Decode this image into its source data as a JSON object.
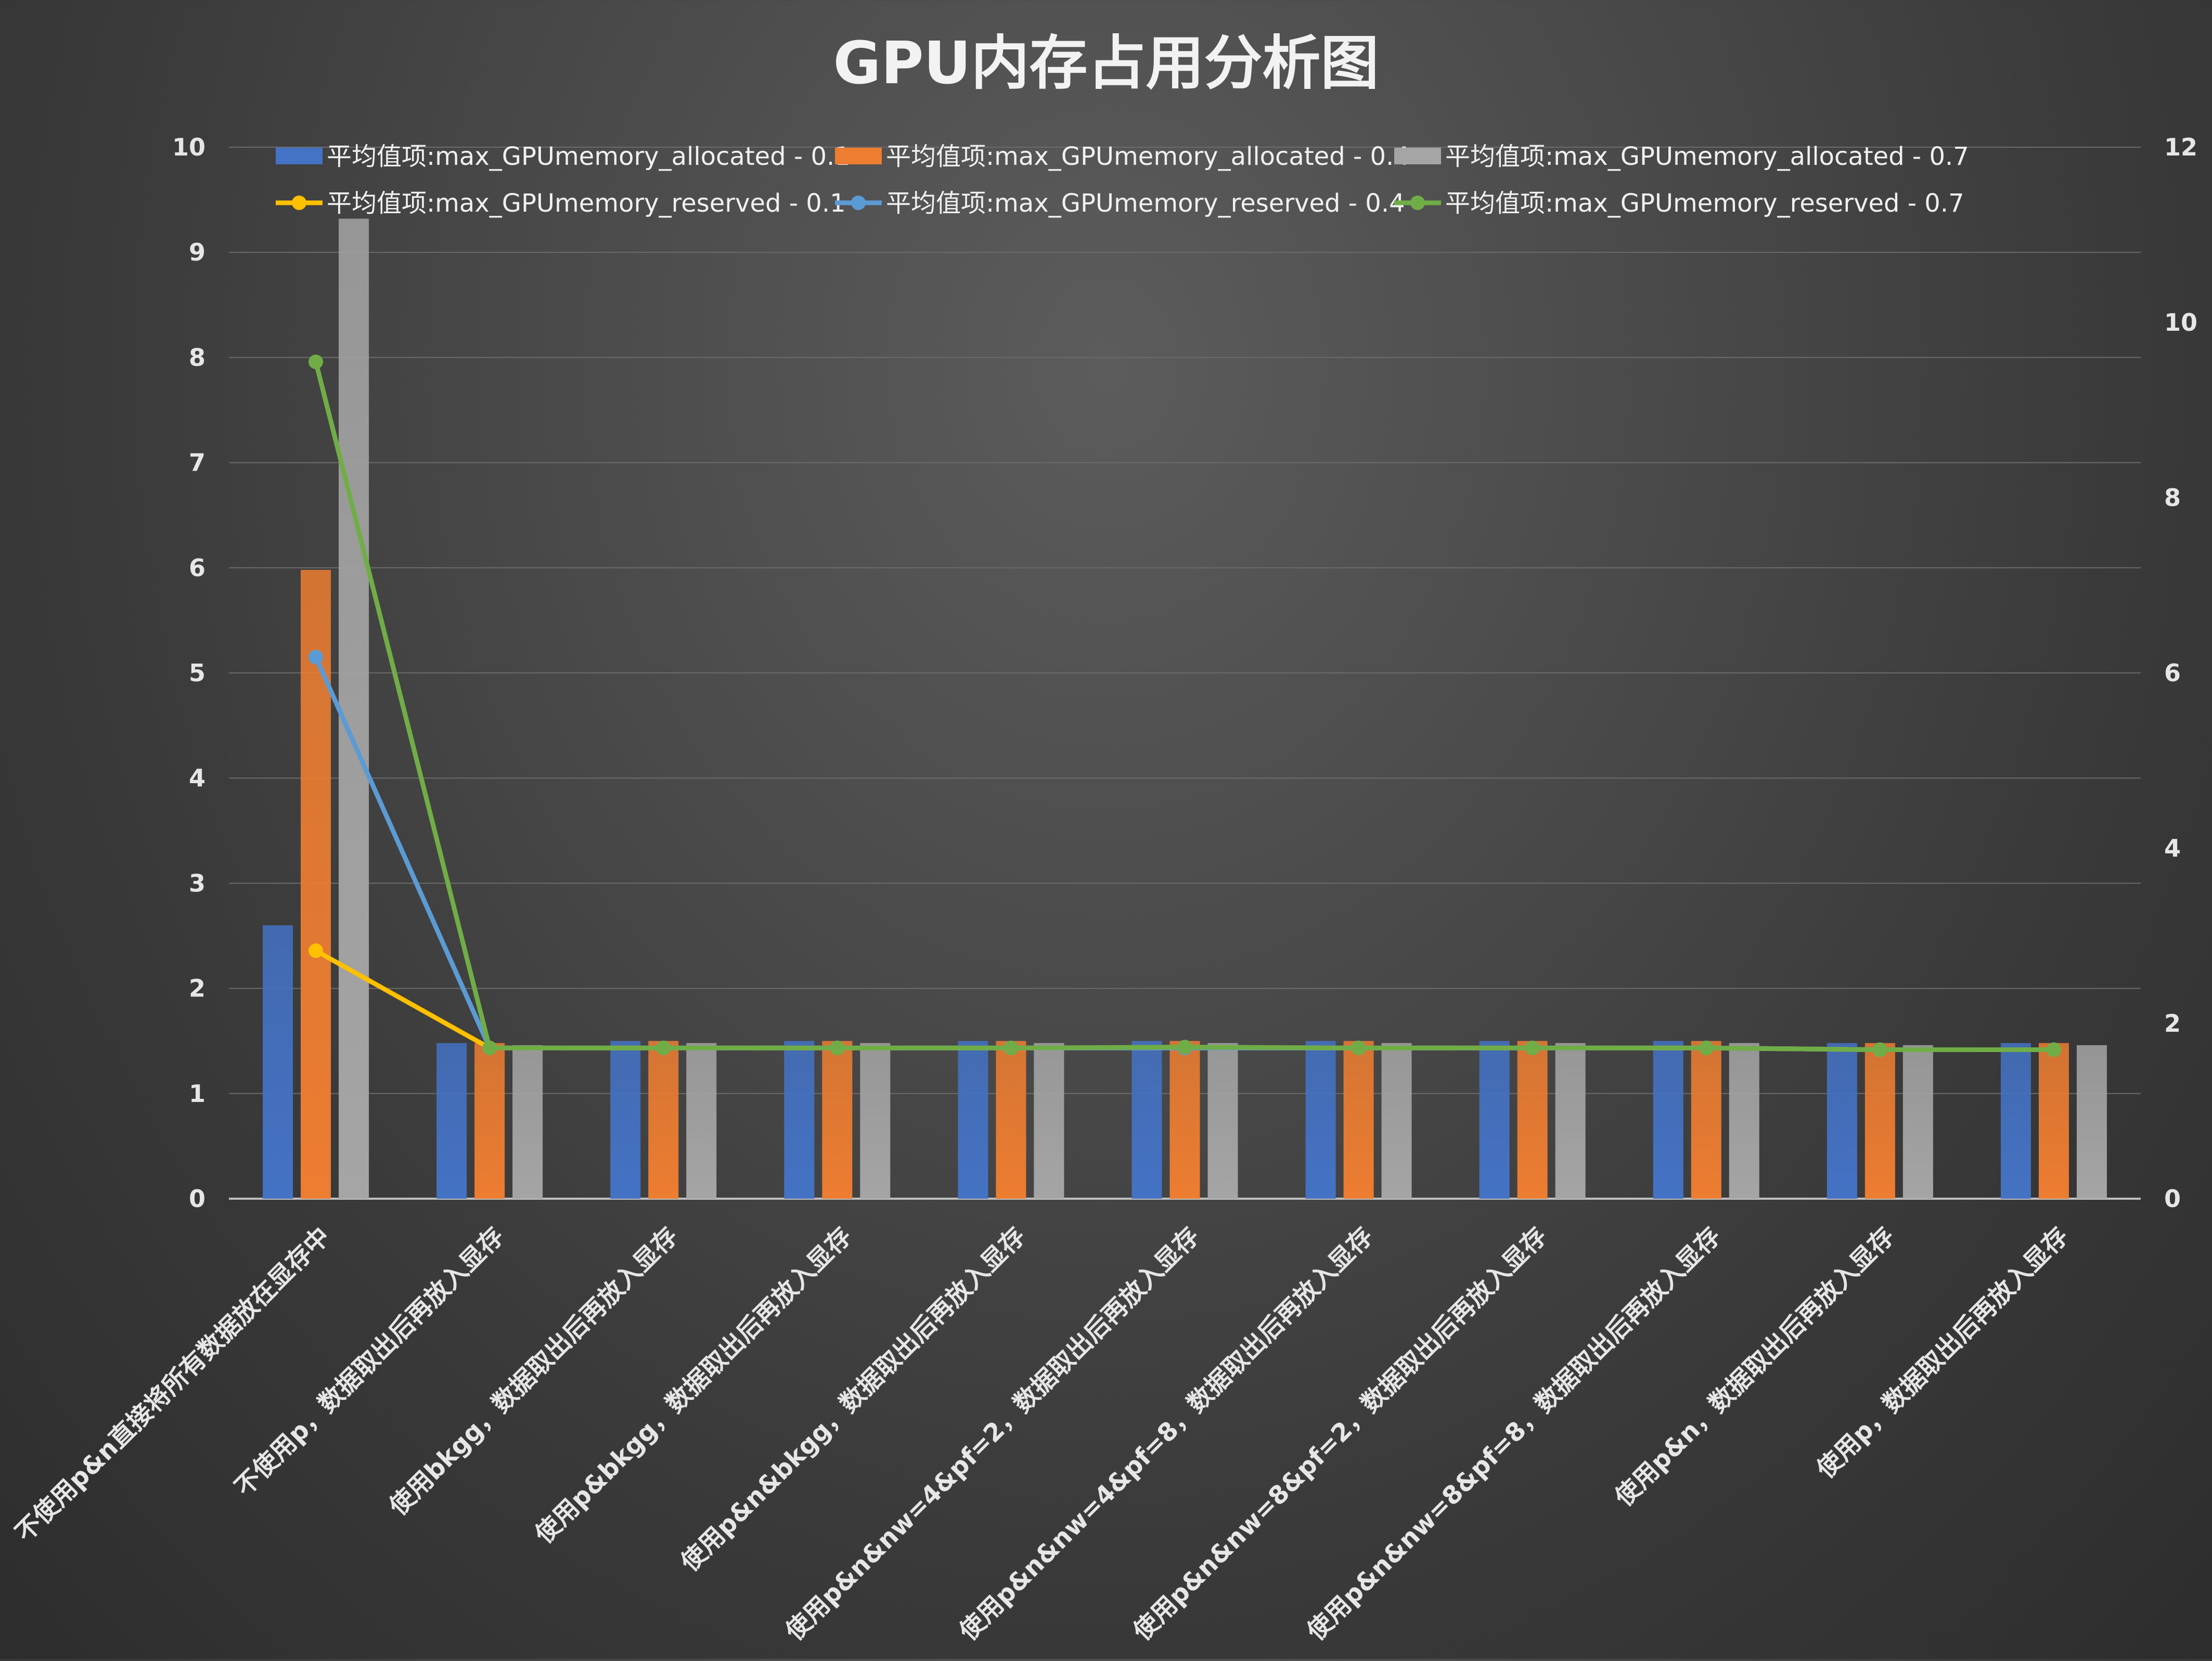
{
  "chart_data": {
    "type": "bar",
    "title": "GPU内存占用分析图",
    "xlabel": "",
    "ylabel": "",
    "ylim": [
      0,
      10
    ],
    "y2lim": [
      0,
      12
    ],
    "y_ticks": [
      0,
      1,
      2,
      3,
      4,
      5,
      6,
      7,
      8,
      9,
      10
    ],
    "y2_ticks": [
      0,
      2,
      4,
      6,
      8,
      10,
      12
    ],
    "legend_position": "top",
    "grid": true,
    "categories": [
      "不使用p&n直接将所有数据放在显存中",
      "不使用p，数据取出后再放入显存",
      "使用bkgg，数据取出后再放入显存",
      "使用p&bkgg，数据取出后再放入显存",
      "使用p&n&bkgg，数据取出后再放入显存",
      "使用p&n&nw=4&pf=2，数据取出后再放入显存",
      "使用p&n&nw=4&pf=8，数据取出后再放入显存",
      "使用p&n&nw=8&pf=2，数据取出后再放入显存",
      "使用p&n&nw=8&pf=8，数据取出后再放入显存",
      "使用p&n，数据取出后再放入显存",
      "使用p，数据取出后再放入显存"
    ],
    "bar_series": [
      {
        "name": "平均值项:max_GPUmemory_allocated - 0.1",
        "color": "#4472C4",
        "axis": "left",
        "values": [
          2.6,
          1.48,
          1.5,
          1.5,
          1.5,
          1.5,
          1.5,
          1.5,
          1.5,
          1.48,
          1.48
        ]
      },
      {
        "name": "平均值项:max_GPUmemory_allocated - 0.4",
        "color": "#ED7D31",
        "axis": "left",
        "values": [
          5.98,
          1.48,
          1.5,
          1.5,
          1.5,
          1.5,
          1.5,
          1.5,
          1.5,
          1.48,
          1.48
        ]
      },
      {
        "name": "平均值项:max_GPUmemory_allocated - 0.7",
        "color": "#A5A5A5",
        "axis": "left",
        "values": [
          9.32,
          1.46,
          1.48,
          1.48,
          1.48,
          1.48,
          1.48,
          1.48,
          1.48,
          1.46,
          1.46
        ]
      }
    ],
    "line_series": [
      {
        "name": "平均值项:max_GPUmemory_reserved - 0.1",
        "color": "#FFC000",
        "axis": "right",
        "values": [
          2.83,
          1.72,
          1.72,
          1.72,
          1.72,
          1.72,
          1.72,
          1.72,
          1.72,
          1.7,
          1.7
        ]
      },
      {
        "name": "平均值项:max_GPUmemory_reserved - 0.4",
        "color": "#5B9BD5",
        "axis": "right",
        "values": [
          6.18,
          1.72,
          1.72,
          1.72,
          1.72,
          1.72,
          1.72,
          1.72,
          1.72,
          1.7,
          1.7
        ]
      },
      {
        "name": "平均值项:max_GPUmemory_reserved - 0.7",
        "color": "#70AD47",
        "axis": "right",
        "values": [
          9.55,
          1.72,
          1.72,
          1.72,
          1.72,
          1.73,
          1.72,
          1.72,
          1.72,
          1.7,
          1.7
        ]
      }
    ]
  }
}
